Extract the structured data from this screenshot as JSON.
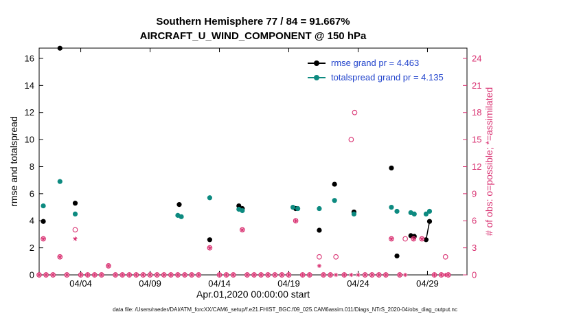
{
  "footer": {
    "data_file": "data file: /Users/raeder/DAI/ATM_forcXX/CAM6_setup/f.e21.FHIST_BGC.f09_025.CAM6assim.011/Diags_NTrS_2020-04/obs_diag_output.nc"
  },
  "colors": {
    "rmse": "#000000",
    "totalspread": "#0d8a80",
    "obs": "#d93272",
    "legend_text": "#2244cc",
    "axis": "#000000"
  },
  "chart_data": {
    "type": "line",
    "title": "Southern Hemisphere 77 / 84 = 91.667%",
    "subtitle": "AIRCRAFT_U_WIND_COMPONENT @ 150 hPa",
    "xlabel": "Apr.01,2020 00:00:00 start",
    "ylabel_left": "rmse and totalspread",
    "ylabel_right": "# of obs: o=possible; *=assimilated",
    "x_range_days": [
      1,
      31.85
    ],
    "y_left_range": [
      0,
      16.76
    ],
    "y_right_range": [
      0,
      25.14
    ],
    "grid": false,
    "connect_gap_max_days": 0.3,
    "x_ticks": [
      {
        "day": 4,
        "label": "04/04"
      },
      {
        "day": 9,
        "label": "04/09"
      },
      {
        "day": 14,
        "label": "04/14"
      },
      {
        "day": 19,
        "label": "04/19"
      },
      {
        "day": 24,
        "label": "04/24"
      },
      {
        "day": 29,
        "label": "04/29"
      }
    ],
    "left_ticks": [
      0,
      2,
      4,
      6,
      8,
      10,
      12,
      14,
      16
    ],
    "right_ticks": [
      0,
      3,
      6,
      9,
      12,
      15,
      18,
      21,
      24
    ],
    "legend": [
      {
        "label": "rmse grand pr = 4.463",
        "series": "rmse"
      },
      {
        "label": "totalspread grand pr = 4.135",
        "series": "totalspread"
      }
    ],
    "series": [
      {
        "name": "rmse",
        "axis": "left",
        "marker": "dot",
        "color_key": "rmse",
        "points": [
          [
            1.3,
            3.95
          ],
          [
            2.5,
            16.75
          ],
          [
            3.6,
            5.3
          ],
          [
            11.1,
            5.2
          ],
          [
            13.3,
            2.6
          ],
          [
            15.4,
            5.1
          ],
          [
            15.65,
            4.9
          ],
          [
            19.5,
            4.9
          ],
          [
            21.2,
            3.3
          ],
          [
            22.3,
            6.7
          ],
          [
            23.7,
            4.65
          ],
          [
            26.4,
            7.9
          ],
          [
            26.8,
            1.4
          ],
          [
            27.8,
            2.9
          ],
          [
            28.05,
            2.85
          ],
          [
            28.9,
            2.6
          ],
          [
            29.15,
            3.95
          ]
        ]
      },
      {
        "name": "totalspread",
        "axis": "left",
        "marker": "dot",
        "color_key": "totalspread",
        "points": [
          [
            1.3,
            5.1
          ],
          [
            2.5,
            6.9
          ],
          [
            3.6,
            4.5
          ],
          [
            11.0,
            4.4
          ],
          [
            11.25,
            4.3
          ],
          [
            13.3,
            5.7
          ],
          [
            15.4,
            4.85
          ],
          [
            15.65,
            4.75
          ],
          [
            19.3,
            5.0
          ],
          [
            19.65,
            4.9
          ],
          [
            21.2,
            4.9
          ],
          [
            22.3,
            5.5
          ],
          [
            23.7,
            4.5
          ],
          [
            26.4,
            5.0
          ],
          [
            26.8,
            4.7
          ],
          [
            27.8,
            4.6
          ],
          [
            28.05,
            4.5
          ],
          [
            28.9,
            4.5
          ],
          [
            29.15,
            4.7
          ]
        ]
      },
      {
        "name": "possible-obs",
        "axis": "right",
        "marker": "open-circle",
        "color_key": "obs",
        "points": [
          [
            1.3,
            4
          ],
          [
            2.5,
            2
          ],
          [
            3.6,
            5
          ],
          [
            6.0,
            1
          ],
          [
            13.3,
            3
          ],
          [
            15.65,
            5
          ],
          [
            19.5,
            6
          ],
          [
            21.2,
            2
          ],
          [
            22.4,
            2
          ],
          [
            23.5,
            15
          ],
          [
            23.75,
            18
          ],
          [
            26.4,
            4
          ],
          [
            27.4,
            4
          ],
          [
            28.0,
            4
          ],
          [
            28.6,
            4
          ],
          [
            30.3,
            2
          ]
        ],
        "zero_days": [
          1,
          1.5,
          2,
          3,
          4,
          4.5,
          5,
          5.5,
          6.5,
          7,
          7.5,
          8,
          8.5,
          9,
          9.5,
          10,
          10.5,
          11,
          11.5,
          12,
          12.5,
          14,
          14.5,
          15,
          16,
          16.5,
          17,
          17.5,
          18,
          18.5,
          19,
          20,
          20.5,
          21.5,
          22,
          23,
          24.5,
          25,
          25.5,
          26,
          27,
          29.5,
          30,
          30.5
        ]
      },
      {
        "name": "assimilated-obs",
        "axis": "right",
        "marker": "asterisk",
        "color_key": "obs",
        "points": [
          [
            1.3,
            4
          ],
          [
            2.5,
            2
          ],
          [
            3.6,
            4
          ],
          [
            6.0,
            1
          ],
          [
            13.3,
            3
          ],
          [
            15.65,
            5
          ],
          [
            19.5,
            6
          ],
          [
            21.2,
            1
          ],
          [
            26.4,
            4
          ],
          [
            28.0,
            4
          ],
          [
            28.6,
            4
          ]
        ],
        "zero_days": [
          1,
          1.5,
          2,
          3,
          4,
          4.5,
          5,
          5.5,
          6.5,
          7,
          7.5,
          8,
          8.5,
          9,
          9.5,
          10,
          10.5,
          11,
          11.5,
          12,
          12.5,
          14,
          14.5,
          15,
          16,
          16.5,
          17,
          17.5,
          18,
          18.5,
          19,
          20,
          20.5,
          21.5,
          22,
          22.4,
          23,
          23.5,
          24,
          24.5,
          25,
          25.5,
          26,
          27,
          27.4,
          29.5,
          30,
          30.3,
          30.5
        ]
      }
    ]
  }
}
